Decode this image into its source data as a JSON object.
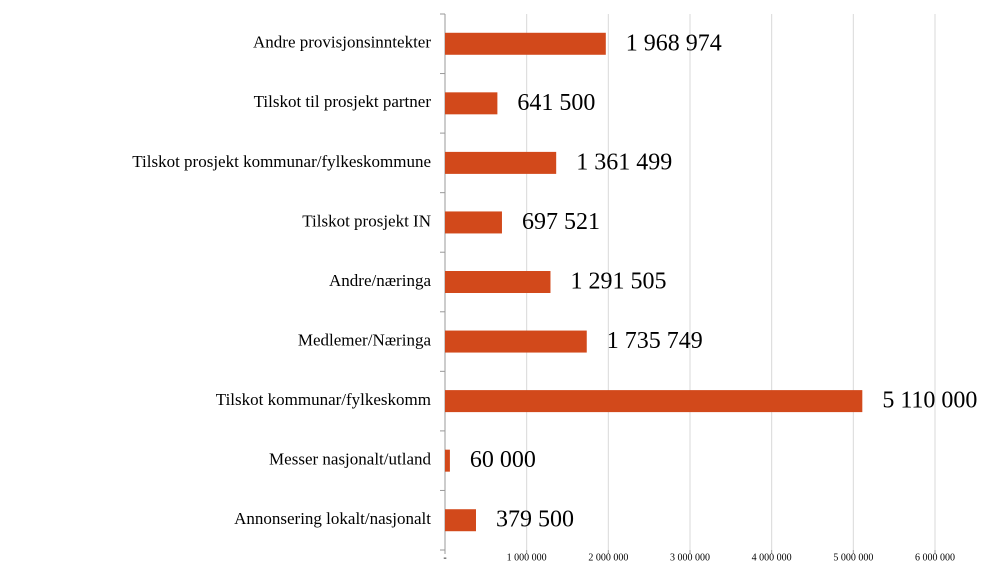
{
  "chart_data": {
    "type": "bar",
    "orientation": "horizontal",
    "categories": [
      "Andre provisjonsinntekter",
      "Tilskot til prosjekt partner",
      "Tilskot prosjekt kommunar/fylkeskommune",
      "Tilskot prosjekt IN",
      "Andre/næringa",
      "Medlemer/Næringa",
      "Tilskot kommunar/fylkeskomm",
      "Messer nasjonalt/utland",
      "Annonsering lokalt/nasjonalt"
    ],
    "values": [
      1968974,
      641500,
      1361499,
      697521,
      1291505,
      1735749,
      5110000,
      60000,
      379500
    ],
    "value_labels": [
      "1 968 974",
      "641 500",
      "1 361 499",
      "697 521",
      "1 291 505",
      "1 735 749",
      "5 110 000",
      "60 000",
      "379 500"
    ],
    "color": "#d2491b",
    "xlim": [
      0,
      6000000
    ],
    "xticks": [
      {
        "value": 0,
        "label": "-"
      },
      {
        "value": 1000000,
        "label": "1 000 000"
      },
      {
        "value": 2000000,
        "label": "2 000 000"
      },
      {
        "value": 3000000,
        "label": "3 000 000"
      },
      {
        "value": 4000000,
        "label": "4 000 000"
      },
      {
        "value": 5000000,
        "label": "5 000 000"
      },
      {
        "value": 6000000,
        "label": "6 000 000"
      }
    ],
    "grid": true
  }
}
